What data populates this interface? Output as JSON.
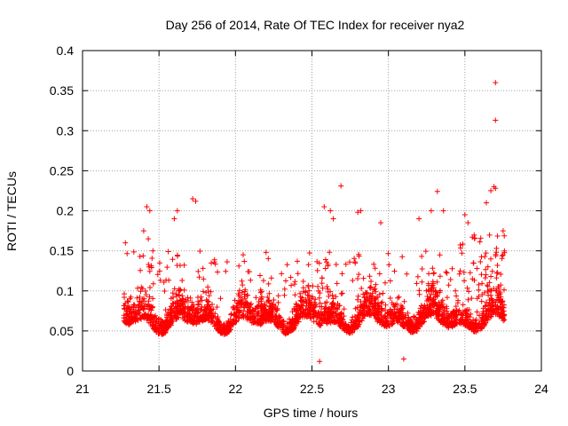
{
  "chart_data": {
    "type": "scatter",
    "title": "Day 256 of 2014, Rate Of TEC Index for receiver nya2",
    "xlabel": "GPS time / hours",
    "ylabel": "ROTI / TECUs",
    "xlim": [
      21,
      24
    ],
    "ylim": [
      0,
      0.4
    ],
    "xticks": [
      21,
      21.5,
      22,
      22.5,
      23,
      23.5,
      24
    ],
    "xtick_labels": [
      "21",
      "21.5",
      "22",
      "22.5",
      "23",
      "23.5",
      "24"
    ],
    "yticks": [
      0,
      0.05,
      0.1,
      0.15,
      0.2,
      0.25,
      0.3,
      0.35,
      0.4
    ],
    "ytick_labels": [
      "0",
      "0.05",
      "0.1",
      "0.15",
      "0.2",
      "0.25",
      "0.3",
      "0.35",
      "0.4"
    ],
    "grid": true,
    "marker": "+",
    "color": "#ff0000",
    "series": [
      {
        "name": "nya2",
        "x_range": [
          21.27,
          23.76
        ],
        "typical_range": [
          0.02,
          0.12
        ],
        "outliers": [
          {
            "x": 21.28,
            "y": 0.16
          },
          {
            "x": 21.42,
            "y": 0.205
          },
          {
            "x": 21.44,
            "y": 0.2
          },
          {
            "x": 21.4,
            "y": 0.175
          },
          {
            "x": 21.43,
            "y": 0.165
          },
          {
            "x": 21.46,
            "y": 0.15
          },
          {
            "x": 21.6,
            "y": 0.19
          },
          {
            "x": 21.62,
            "y": 0.2
          },
          {
            "x": 21.72,
            "y": 0.215
          },
          {
            "x": 21.74,
            "y": 0.212
          },
          {
            "x": 22.05,
            "y": 0.145
          },
          {
            "x": 22.2,
            "y": 0.148
          },
          {
            "x": 22.58,
            "y": 0.205
          },
          {
            "x": 22.62,
            "y": 0.2
          },
          {
            "x": 22.64,
            "y": 0.19
          },
          {
            "x": 22.69,
            "y": 0.231
          },
          {
            "x": 22.8,
            "y": 0.198
          },
          {
            "x": 22.82,
            "y": 0.2
          },
          {
            "x": 22.95,
            "y": 0.185
          },
          {
            "x": 23.2,
            "y": 0.19
          },
          {
            "x": 23.28,
            "y": 0.2
          },
          {
            "x": 23.32,
            "y": 0.224
          },
          {
            "x": 23.36,
            "y": 0.2
          },
          {
            "x": 23.5,
            "y": 0.195
          },
          {
            "x": 23.52,
            "y": 0.185
          },
          {
            "x": 23.64,
            "y": 0.21
          },
          {
            "x": 23.67,
            "y": 0.225
          },
          {
            "x": 23.69,
            "y": 0.23
          },
          {
            "x": 23.7,
            "y": 0.228
          },
          {
            "x": 23.7,
            "y": 0.36
          },
          {
            "x": 23.7,
            "y": 0.313
          },
          {
            "x": 23.75,
            "y": 0.175
          },
          {
            "x": 22.55,
            "y": 0.012
          },
          {
            "x": 23.1,
            "y": 0.015
          }
        ]
      }
    ]
  }
}
